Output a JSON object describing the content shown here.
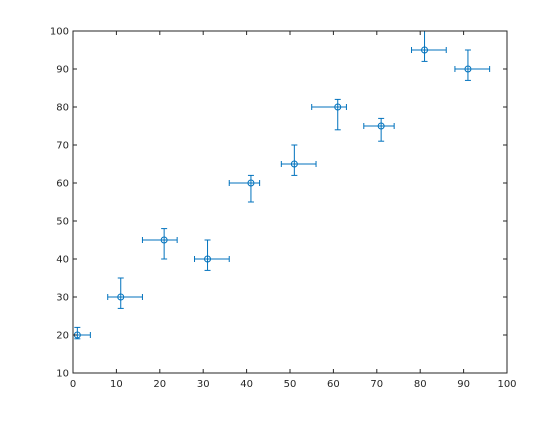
{
  "chart_data": {
    "type": "scatter",
    "title": "",
    "xlabel": "",
    "ylabel": "",
    "xlim": [
      0,
      100
    ],
    "ylim": [
      10,
      100
    ],
    "xticks": [
      "0",
      "10",
      "20",
      "30",
      "40",
      "50",
      "60",
      "70",
      "80",
      "90",
      "100"
    ],
    "yticks": [
      "10",
      "20",
      "30",
      "40",
      "50",
      "60",
      "70",
      "80",
      "90",
      "100"
    ],
    "grid": false,
    "marker": "circle",
    "color": "#0072bd",
    "series": [
      {
        "points": [
          {
            "x": 1,
            "y": 20,
            "xneg": 1,
            "xpos": 3,
            "yneg": 1,
            "ypos": 2
          },
          {
            "x": 11,
            "y": 30,
            "xneg": 3,
            "xpos": 5,
            "yneg": 3,
            "ypos": 5
          },
          {
            "x": 21,
            "y": 45,
            "xneg": 5,
            "xpos": 3,
            "yneg": 5,
            "ypos": 3
          },
          {
            "x": 31,
            "y": 40,
            "xneg": 3,
            "xpos": 5,
            "yneg": 3,
            "ypos": 5
          },
          {
            "x": 41,
            "y": 60,
            "xneg": 5,
            "xpos": 2,
            "yneg": 5,
            "ypos": 2
          },
          {
            "x": 51,
            "y": 65,
            "xneg": 3,
            "xpos": 5,
            "yneg": 3,
            "ypos": 5
          },
          {
            "x": 61,
            "y": 80,
            "xneg": 6,
            "xpos": 2,
            "yneg": 6,
            "ypos": 2
          },
          {
            "x": 71,
            "y": 75,
            "xneg": 4,
            "xpos": 3,
            "yneg": 4,
            "ypos": 2
          },
          {
            "x": 81,
            "y": 95,
            "xneg": 3,
            "xpos": 5,
            "yneg": 3,
            "ypos": 5
          },
          {
            "x": 91,
            "y": 90,
            "xneg": 3,
            "xpos": 5,
            "yneg": 3,
            "ypos": 5
          }
        ]
      }
    ]
  }
}
